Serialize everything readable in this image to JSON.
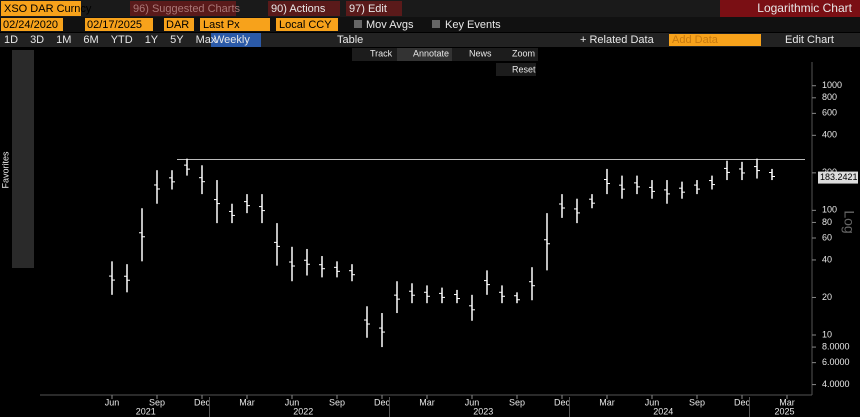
{
  "toolbar": {
    "ticker": "XSO DAR Curncy",
    "start": "02/24/2020",
    "end": "02/17/2025",
    "currency": "DAR",
    "field": "Last Px",
    "ccy_mode": "Local CCY",
    "suggested": "96) Suggested Charts",
    "actions": "90) Actions",
    "edit": "97) Edit",
    "mov_avgs": "Mov Avgs",
    "key_events": "Key Events",
    "chart_kind": "Logarithmic Chart"
  },
  "toolbar2": {
    "ranges": [
      "1D",
      "3D",
      "1M",
      "6M",
      "YTD",
      "1Y",
      "5Y",
      "Max"
    ],
    "period": "Weekly",
    "table": "Table",
    "related": "+ Related Data",
    "add_data": "Add Data",
    "edit_chart": "Edit Chart"
  },
  "tools": {
    "track": "Track",
    "annotate": "Annotate",
    "news": "News",
    "zoom": "Zoom",
    "reset": "Reset",
    "favorites": "Favorites"
  },
  "chart_data": {
    "type": "range",
    "axis_label": "Log",
    "log_scale": true,
    "color": "#ffffff",
    "last_price": 183.2421,
    "resistance": 256,
    "x": [
      "2021-06",
      "2021-07",
      "2021-08",
      "2021-09",
      "2021-10",
      "2021-11",
      "2021-12",
      "2022-01",
      "2022-02",
      "2022-03",
      "2022-04",
      "2022-05",
      "2022-06",
      "2022-07",
      "2022-08",
      "2022-09",
      "2022-10",
      "2022-11",
      "2022-12",
      "2023-01",
      "2023-02",
      "2023-03",
      "2023-04",
      "2023-05",
      "2023-06",
      "2023-07",
      "2023-08",
      "2023-09",
      "2023-10",
      "2023-11",
      "2023-12",
      "2024-01",
      "2024-02",
      "2024-03",
      "2024-04",
      "2024-05",
      "2024-06",
      "2024-07",
      "2024-08",
      "2024-09",
      "2024-10",
      "2024-11",
      "2024-12",
      "2025-01",
      "2025-02"
    ],
    "high": [
      39,
      37,
      104,
      210,
      210,
      260,
      230,
      175,
      113,
      135,
      135,
      79,
      51,
      49,
      43,
      39,
      37,
      17,
      15,
      27,
      26,
      25,
      24,
      23,
      21,
      33,
      25,
      22,
      35,
      95,
      135,
      124,
      135,
      215,
      190,
      190,
      175,
      175,
      170,
      175,
      190,
      250,
      245,
      260,
      215
    ],
    "low": [
      21,
      22,
      39,
      113,
      147,
      190,
      135,
      79,
      79,
      95,
      79,
      36,
      27,
      30,
      29,
      29,
      27,
      9.5,
      8,
      15,
      18,
      18,
      18,
      18,
      13,
      21,
      18,
      18,
      19,
      33,
      87,
      79,
      104,
      135,
      124,
      135,
      124,
      113,
      124,
      135,
      147,
      175,
      175,
      180,
      175
    ],
    "ylim": [
      3.3,
      1550
    ],
    "yticks": [
      1000,
      800,
      600,
      400,
      200,
      100,
      80,
      60,
      40,
      20,
      10,
      {
        "value": 8,
        "label": "8.0000"
      },
      {
        "value": 6,
        "label": "6.0000"
      },
      {
        "value": 4,
        "label": "4.0000"
      }
    ],
    "xticks": [
      {
        "value": "2021-06",
        "label": "Jun"
      },
      {
        "value": "2021-09",
        "label": "Sep"
      },
      {
        "value": "2021-12",
        "label": "Dec"
      },
      {
        "value": "2022-03",
        "label": "Mar"
      },
      {
        "value": "2022-06",
        "label": "Jun"
      },
      {
        "value": "2022-09",
        "label": "Sep"
      },
      {
        "value": "2022-12",
        "label": "Dec"
      },
      {
        "value": "2023-03",
        "label": "Mar"
      },
      {
        "value": "2023-06",
        "label": "Jun"
      },
      {
        "value": "2023-09",
        "label": "Sep"
      },
      {
        "value": "2023-12",
        "label": "Dec"
      },
      {
        "value": "2024-03",
        "label": "Mar"
      },
      {
        "value": "2024-06",
        "label": "Jun"
      },
      {
        "value": "2024-09",
        "label": "Sep"
      },
      {
        "value": "2024-12",
        "label": "Dec"
      },
      {
        "value": "2025-03",
        "label": "Mar"
      }
    ],
    "years": [
      "2021",
      "2022",
      "2023",
      "2024",
      "2025"
    ]
  }
}
